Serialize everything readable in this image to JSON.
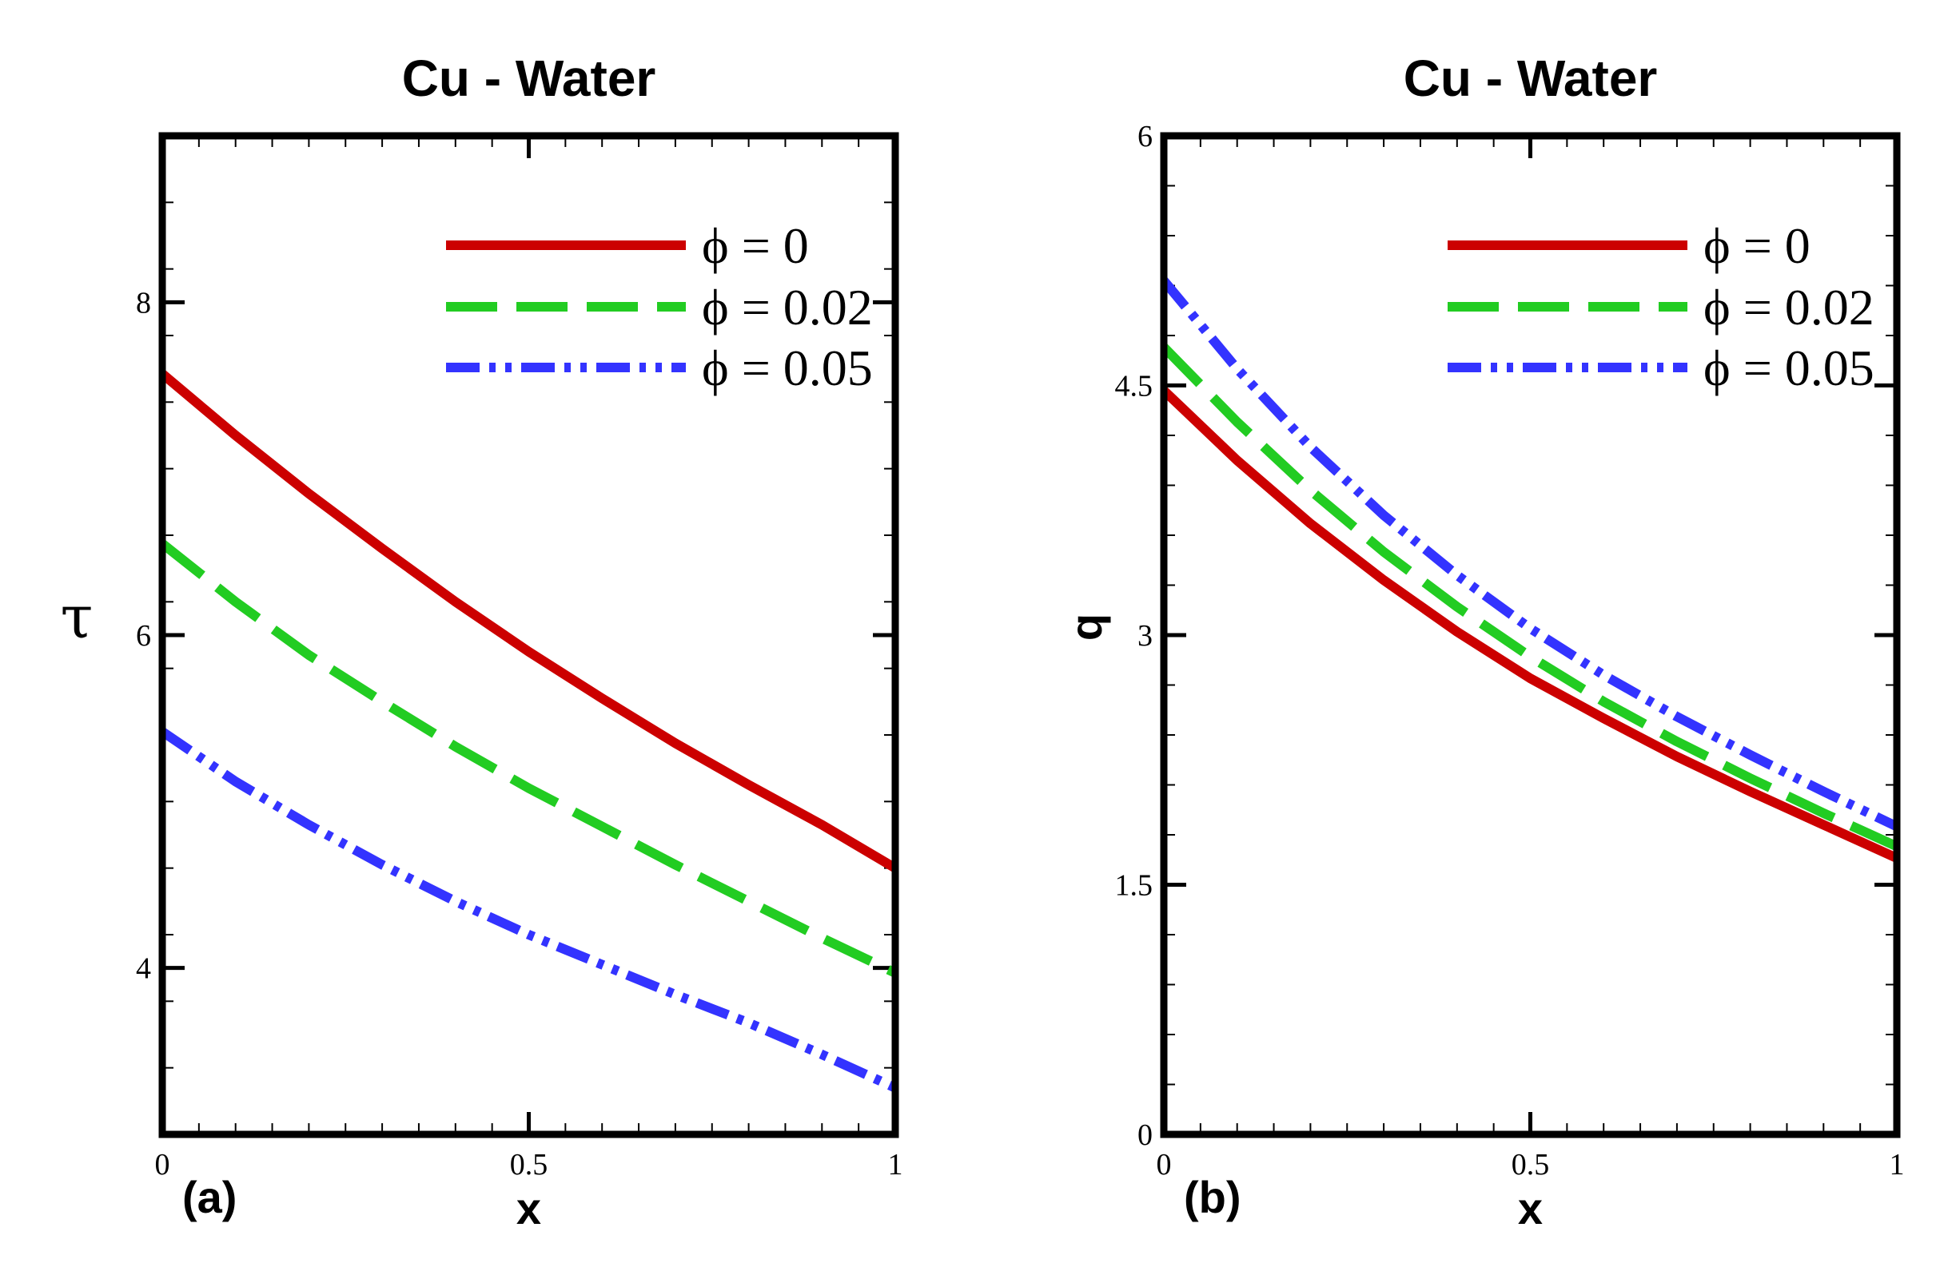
{
  "chart_data": [
    {
      "type": "line",
      "panel_label": "(a)",
      "title": "Cu - Water",
      "xlabel": "x",
      "ylabel": "τ",
      "xlim": [
        0,
        1
      ],
      "ylim": [
        3,
        9
      ],
      "xticks": [
        0,
        0.5,
        1
      ],
      "xtick_labels": [
        "0",
        "0.5",
        "1"
      ],
      "yticks": [
        4,
        6,
        8
      ],
      "ytick_labels": [
        "4",
        "6",
        "8"
      ],
      "legend_position": "top-right",
      "series": [
        {
          "name": "ϕ = 0",
          "color": "#cc0000",
          "style": "solid",
          "x": [
            0,
            0.1,
            0.2,
            0.3,
            0.4,
            0.5,
            0.6,
            0.7,
            0.8,
            0.9,
            1.0
          ],
          "y": [
            7.57,
            7.2,
            6.85,
            6.52,
            6.2,
            5.9,
            5.62,
            5.35,
            5.1,
            4.86,
            4.6
          ]
        },
        {
          "name": "ϕ = 0.02",
          "color": "#22cc22",
          "style": "dashed",
          "x": [
            0,
            0.1,
            0.2,
            0.3,
            0.4,
            0.5,
            0.6,
            0.7,
            0.8,
            0.9,
            1.0
          ],
          "y": [
            6.55,
            6.2,
            5.88,
            5.6,
            5.33,
            5.08,
            4.85,
            4.62,
            4.4,
            4.18,
            3.97
          ]
        },
        {
          "name": "ϕ = 0.05",
          "color": "#3333ff",
          "style": "dash-dot-dot",
          "x": [
            0,
            0.1,
            0.2,
            0.3,
            0.4,
            0.5,
            0.6,
            0.7,
            0.8,
            0.9,
            1.0
          ],
          "y": [
            5.42,
            5.12,
            4.86,
            4.62,
            4.4,
            4.2,
            4.02,
            3.84,
            3.67,
            3.48,
            3.28
          ]
        }
      ]
    },
    {
      "type": "line",
      "panel_label": "(b)",
      "title": "Cu - Water",
      "xlabel": "x",
      "ylabel": "q",
      "xlim": [
        0,
        1
      ],
      "ylim": [
        0,
        6
      ],
      "xticks": [
        0,
        0.5,
        1
      ],
      "xtick_labels": [
        "0",
        "0.5",
        "1"
      ],
      "yticks": [
        0,
        1.5,
        3,
        4.5,
        6
      ],
      "ytick_labels": [
        "0",
        "1.5",
        "3",
        "4.5",
        "6"
      ],
      "legend_position": "top-right",
      "series": [
        {
          "name": "ϕ = 0",
          "color": "#cc0000",
          "style": "solid",
          "x": [
            0,
            0.1,
            0.2,
            0.3,
            0.4,
            0.5,
            0.6,
            0.7,
            0.8,
            0.9,
            1.0
          ],
          "y": [
            4.47,
            4.05,
            3.67,
            3.33,
            3.02,
            2.74,
            2.5,
            2.27,
            2.06,
            1.86,
            1.66
          ]
        },
        {
          "name": "ϕ = 0.02",
          "color": "#22cc22",
          "style": "dashed",
          "x": [
            0,
            0.1,
            0.2,
            0.3,
            0.4,
            0.5,
            0.6,
            0.7,
            0.8,
            0.9,
            1.0
          ],
          "y": [
            4.73,
            4.28,
            3.87,
            3.5,
            3.17,
            2.87,
            2.6,
            2.36,
            2.14,
            1.93,
            1.73
          ]
        },
        {
          "name": "ϕ = 0.05",
          "color": "#3333ff",
          "style": "dash-dot-dot",
          "x": [
            0,
            0.1,
            0.2,
            0.3,
            0.4,
            0.5,
            0.6,
            0.7,
            0.8,
            0.9,
            1.0
          ],
          "y": [
            5.13,
            4.6,
            4.13,
            3.72,
            3.36,
            3.04,
            2.76,
            2.51,
            2.28,
            2.06,
            1.85
          ]
        }
      ]
    }
  ]
}
